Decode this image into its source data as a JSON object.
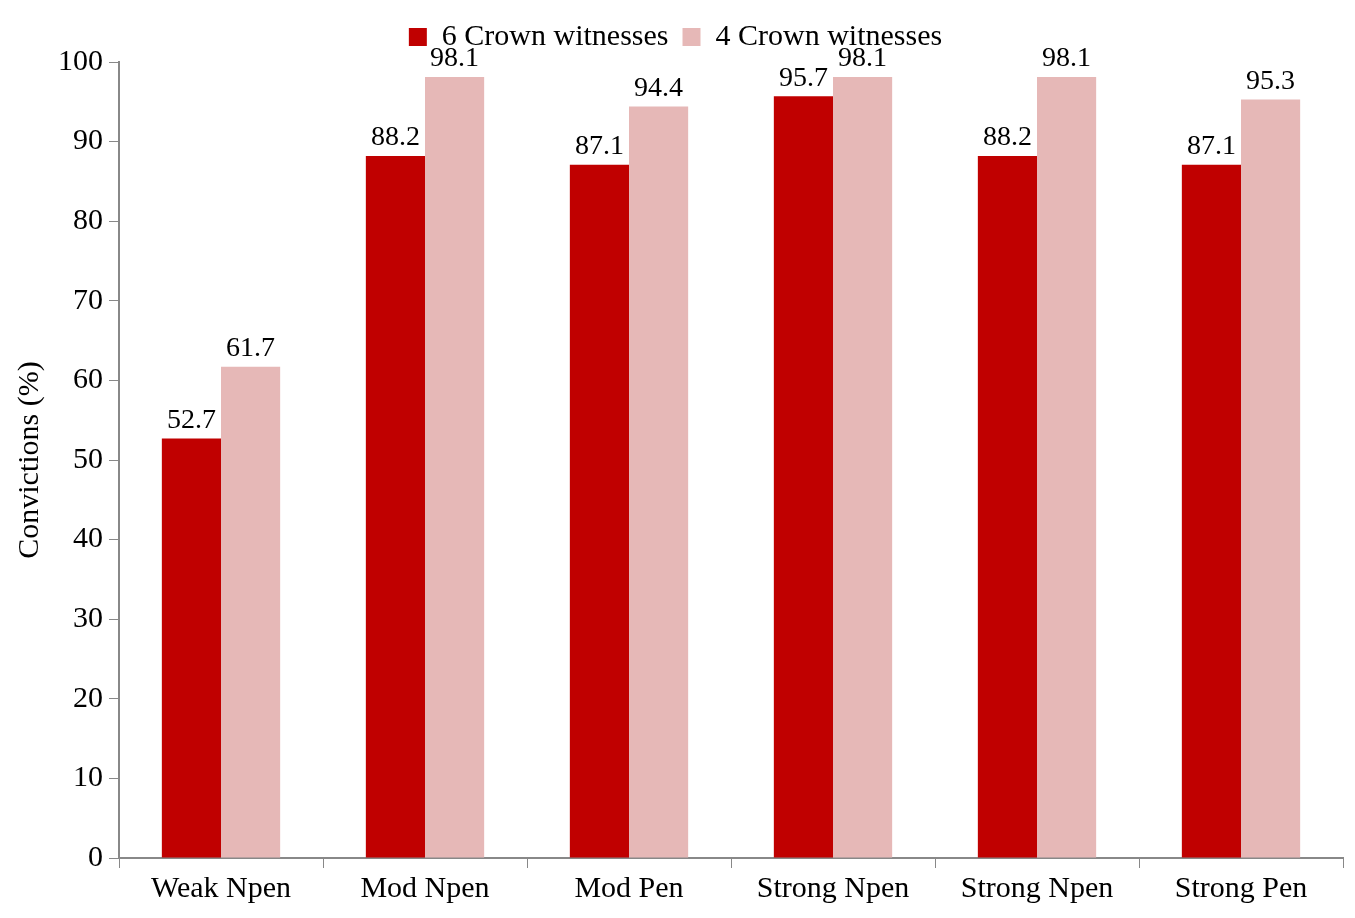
{
  "chart_data": {
    "type": "bar",
    "ylabel": "Convictions (%)",
    "categories": [
      "Weak Npen",
      "Mod Npen",
      "Mod Pen",
      "Strong Npen",
      "Strong Npen",
      "Strong Pen"
    ],
    "series": [
      {
        "name": "6 Crown witnesses",
        "color": "#c00000",
        "values": [
          52.7,
          88.2,
          87.1,
          95.7,
          88.2,
          87.1
        ]
      },
      {
        "name": "4 Crown witnesses",
        "color": "#e6b8b7",
        "values": [
          61.7,
          98.1,
          94.4,
          98.1,
          98.1,
          95.3
        ]
      }
    ],
    "ylim": [
      0,
      100
    ],
    "yticks": [
      0,
      10,
      20,
      30,
      40,
      50,
      60,
      70,
      80,
      90,
      100
    ],
    "grid": false,
    "legend": "top",
    "data_labels": true
  }
}
